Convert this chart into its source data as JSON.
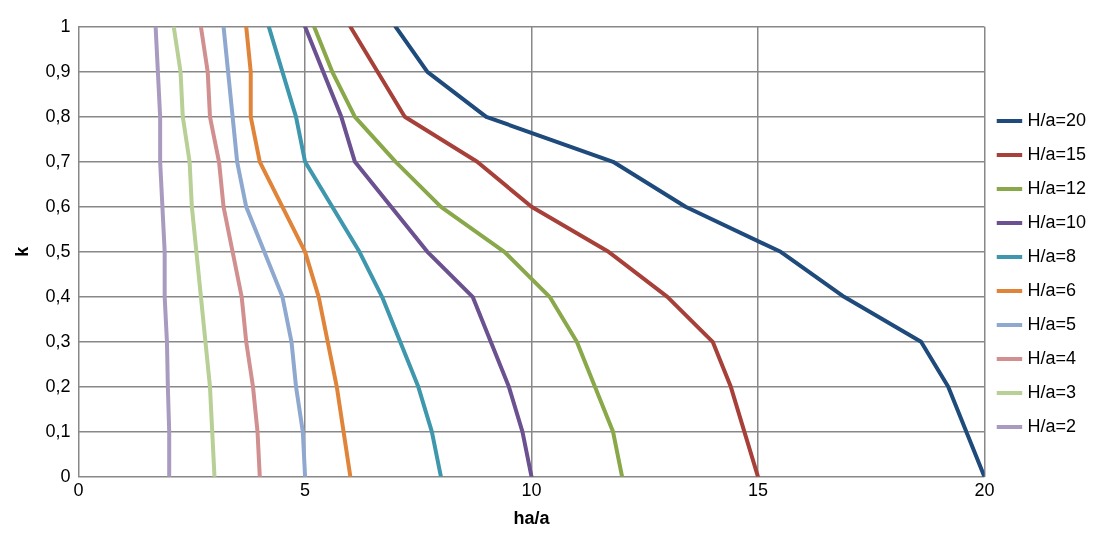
{
  "chart_data": {
    "type": "line",
    "xlabel": "ha/a",
    "ylabel": "k",
    "xlim": [
      0,
      20
    ],
    "xticks": [
      0,
      5,
      10,
      15,
      20
    ],
    "ylim": [
      0,
      1
    ],
    "yticks": [
      0,
      {
        "value": 0.1,
        "label": "0,1"
      },
      {
        "value": 0.2,
        "label": "0,2"
      },
      {
        "value": 0.3,
        "label": "0,3"
      },
      {
        "value": 0.4,
        "label": "0,4"
      },
      {
        "value": 0.5,
        "label": "0,5"
      },
      {
        "value": 0.6,
        "label": "0,6"
      },
      {
        "value": 0.7,
        "label": "0,7"
      },
      {
        "value": 0.8,
        "label": "0,8"
      },
      {
        "value": 0.9,
        "label": "0,9"
      },
      1
    ],
    "grid": true,
    "legend": "right",
    "marker": "none",
    "line_style": "solid",
    "series": [
      {
        "name": "H/a=20",
        "color": "#1e4a7c",
        "x": [
          20,
          19.6,
          19.2,
          18.6,
          16.9,
          15.5,
          13.4,
          11.8,
          9.0,
          7.7,
          7.0
        ],
        "values": [
          0,
          0.1,
          0.2,
          0.3,
          0.4,
          0.5,
          0.6,
          0.7,
          0.8,
          0.9,
          1
        ]
      },
      {
        "name": "H/a=15",
        "color": "#a8403a",
        "x": [
          15,
          14.7,
          14.4,
          14.0,
          13.0,
          11.7,
          10.0,
          8.8,
          7.2,
          6.6,
          6.0
        ],
        "values": [
          0,
          0.1,
          0.2,
          0.3,
          0.4,
          0.5,
          0.6,
          0.7,
          0.8,
          0.9,
          1
        ]
      },
      {
        "name": "H/a=12",
        "color": "#88a84a",
        "x": [
          12,
          11.8,
          11.4,
          11.0,
          10.4,
          9.4,
          8.0,
          7.0,
          6.1,
          5.6,
          5.2
        ],
        "values": [
          0,
          0.1,
          0.2,
          0.3,
          0.4,
          0.5,
          0.6,
          0.7,
          0.8,
          0.9,
          1
        ]
      },
      {
        "name": "H/a=10",
        "color": "#6b5190",
        "x": [
          10,
          9.8,
          9.5,
          9.1,
          8.7,
          7.7,
          6.9,
          6.1,
          5.8,
          5.4,
          5.0
        ],
        "values": [
          0,
          0.1,
          0.2,
          0.3,
          0.4,
          0.5,
          0.6,
          0.7,
          0.8,
          0.9,
          1
        ]
      },
      {
        "name": "H/a=8",
        "color": "#3e97ad",
        "x": [
          8,
          7.8,
          7.5,
          7.1,
          6.7,
          6.2,
          5.6,
          5.0,
          4.8,
          4.5,
          4.2
        ],
        "values": [
          0,
          0.1,
          0.2,
          0.3,
          0.4,
          0.5,
          0.6,
          0.7,
          0.8,
          0.9,
          1
        ]
      },
      {
        "name": "H/a=6",
        "color": "#e0843a",
        "x": [
          6,
          5.85,
          5.7,
          5.5,
          5.3,
          5.0,
          4.5,
          4.0,
          3.8,
          3.8,
          3.7
        ],
        "values": [
          0,
          0.1,
          0.2,
          0.3,
          0.4,
          0.5,
          0.6,
          0.7,
          0.8,
          0.9,
          1
        ]
      },
      {
        "name": "H/a=5",
        "color": "#8ea8cf",
        "x": [
          5,
          4.95,
          4.8,
          4.7,
          4.5,
          4.1,
          3.7,
          3.5,
          3.4,
          3.3,
          3.2
        ],
        "values": [
          0,
          0.1,
          0.2,
          0.3,
          0.4,
          0.5,
          0.6,
          0.7,
          0.8,
          0.9,
          1
        ]
      },
      {
        "name": "H/a=4",
        "color": "#d18f8f",
        "x": [
          4,
          3.95,
          3.85,
          3.7,
          3.6,
          3.4,
          3.2,
          3.1,
          2.9,
          2.85,
          2.7
        ],
        "values": [
          0,
          0.1,
          0.2,
          0.3,
          0.4,
          0.5,
          0.6,
          0.7,
          0.8,
          0.9,
          1
        ]
      },
      {
        "name": "H/a=3",
        "color": "#b8cf95",
        "x": [
          3,
          2.95,
          2.9,
          2.8,
          2.7,
          2.6,
          2.5,
          2.45,
          2.3,
          2.25,
          2.1
        ],
        "values": [
          0,
          0.1,
          0.2,
          0.3,
          0.4,
          0.5,
          0.6,
          0.7,
          0.8,
          0.9,
          1
        ]
      },
      {
        "name": "H/a=2",
        "color": "#a89bbf",
        "x": [
          2,
          2.0,
          1.97,
          1.95,
          1.9,
          1.9,
          1.85,
          1.8,
          1.8,
          1.75,
          1.7
        ],
        "values": [
          0,
          0.1,
          0.2,
          0.3,
          0.4,
          0.5,
          0.6,
          0.7,
          0.8,
          0.9,
          1
        ]
      }
    ]
  }
}
